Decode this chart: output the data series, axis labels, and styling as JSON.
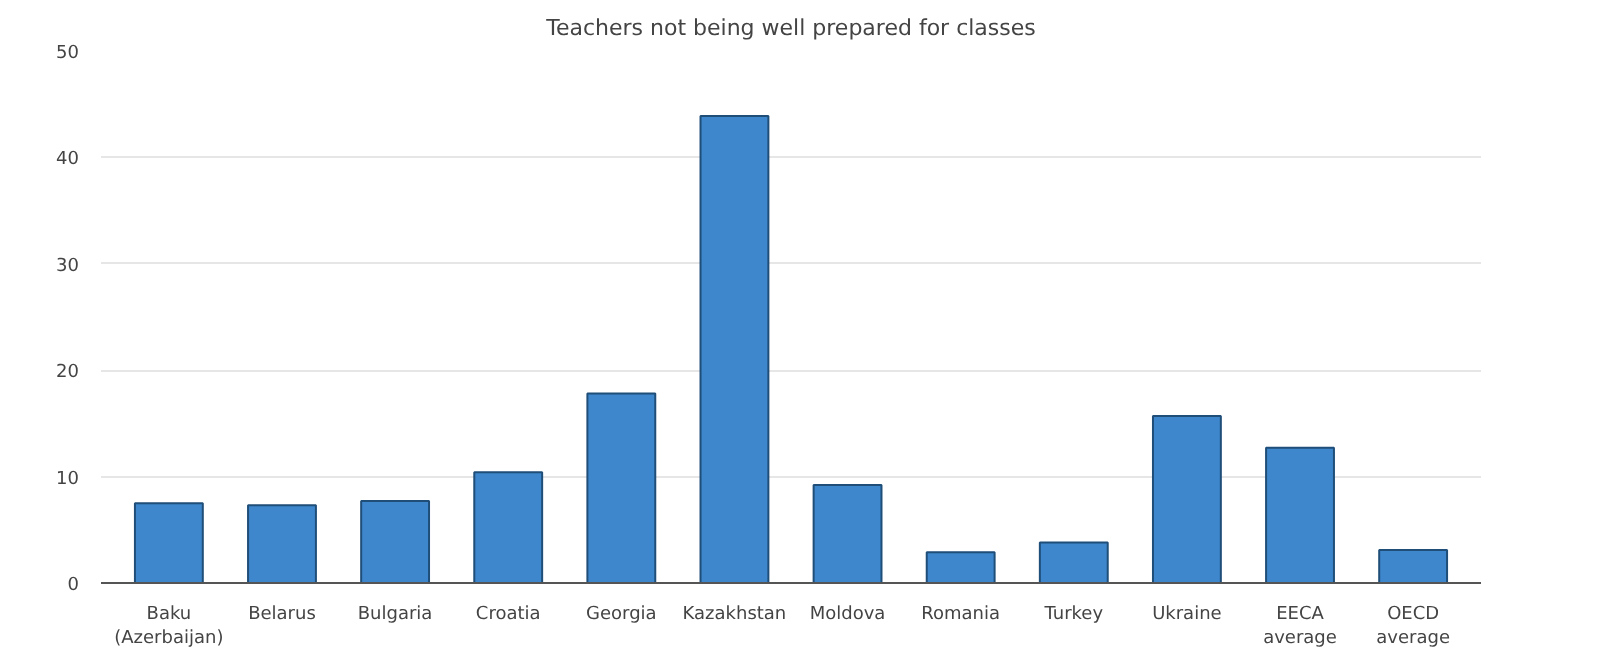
{
  "chart_data": {
    "type": "bar",
    "title": "Teachers not being well prepared for classes",
    "categories": [
      "Baku (Azerbaijan)",
      "Belarus",
      "Bulgaria",
      "Croatia",
      "Georgia",
      "Kazakhstan",
      "Moldova",
      "Romania",
      "Turkey",
      "Ukraine",
      "EECA average",
      "OECD average"
    ],
    "values": [
      7.5,
      7.3,
      7.7,
      10.4,
      17.8,
      43.9,
      9.2,
      2.9,
      3.8,
      15.7,
      12.7,
      3.1
    ],
    "color": "#3e87cc",
    "ylim": [
      0,
      50
    ],
    "yticks": [
      0,
      10,
      20,
      30,
      40,
      50
    ],
    "grid": "y"
  }
}
